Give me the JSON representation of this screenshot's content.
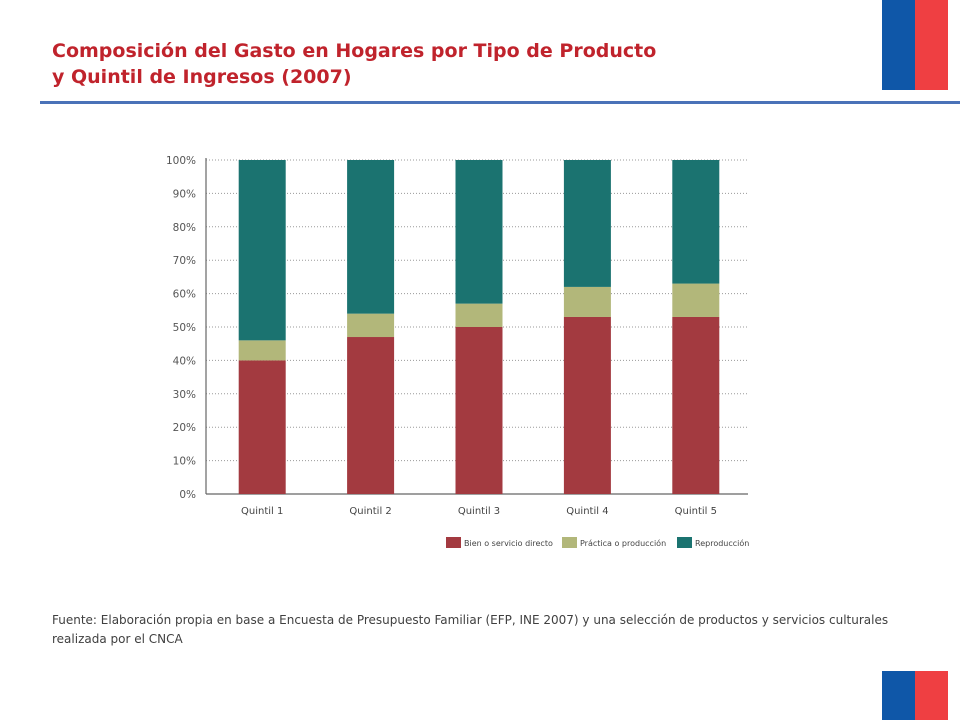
{
  "slide": {
    "title_line1": "Composición del Gasto en Hogares por Tipo de Producto",
    "title_line2": "y Quintil de Ingresos (2007)",
    "source": "Fuente: Elaboración propia en base a Encuesta de Presupuesto Familiar (EFP, INE 2007) y una selección de productos y servicios culturales realizada por el CNCA"
  },
  "colors": {
    "title": "#c0232c",
    "rule": "#4a72b8",
    "flag_blue": "#0f57a8",
    "flag_red": "#ef3f42"
  },
  "chart_data": {
    "type": "bar",
    "stacked": true,
    "title": "",
    "xlabel": "",
    "ylabel": "",
    "categories": [
      "Quintil 1",
      "Quintil 2",
      "Quintil 3",
      "Quintil 4",
      "Quintil 5"
    ],
    "series": [
      {
        "name": "Bien o servicio directo",
        "color": "#a33a40",
        "values": [
          40,
          47,
          50,
          53,
          53
        ]
      },
      {
        "name": "Práctica o producción",
        "color": "#b2b77a",
        "values": [
          6,
          7,
          7,
          9,
          10
        ]
      },
      {
        "name": "Reproducción",
        "color": "#1b7370",
        "values": [
          54,
          46,
          43,
          38,
          37
        ]
      }
    ],
    "ylim": [
      0,
      100
    ],
    "yticks": [
      "0%",
      "10%",
      "20%",
      "30%",
      "40%",
      "50%",
      "60%",
      "70%",
      "80%",
      "90%",
      "100%"
    ],
    "grid": true,
    "legend": "bottom-right"
  }
}
